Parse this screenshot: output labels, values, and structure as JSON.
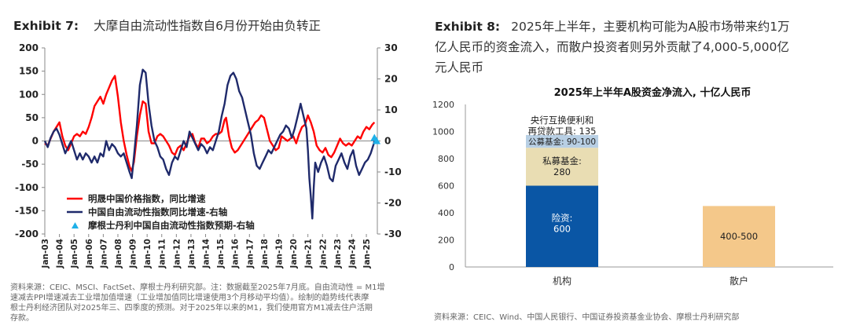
{
  "left": {
    "exhibit_label": "Exhibit 7:",
    "exhibit_title": "大摩自由流动性指数自6月份开始由负转正",
    "source": [
      "资料来源：CEIC、MSCI、FactSet、摩根士丹利研究部。注：数据截至2025年7月底。自由流动性 = M1增",
      "速减去PPI增速减去工业增加值增速（工业增加值同比增速使用3个月移动平均值）。绘制的趋势线代表摩",
      "根士丹利经济团队对2025年三、四季度的预测。对于2025年以来的M1，我们使用官方M1减去住户活期",
      "存款。"
    ]
  },
  "right": {
    "exhibit_label": "Exhibit 8:",
    "exhibit_title_lines": [
      "2025年上半年，主要机构可能为A股市场带来约1万",
      "亿人民币的资金流入，而散户投资者则另外贡献了4,000-5,000亿",
      "元人民币"
    ],
    "source": "资料来源：CEIC、Wind、中国人民银行、中国证券投资基金业协会、摩根士丹利研究部"
  },
  "chart_data": [
    {
      "type": "line",
      "left_axis": {
        "ticks": [
          "200",
          "150",
          "100",
          "50",
          "0",
          "-50",
          "-100",
          "-150",
          "-200"
        ],
        "ylim": [
          -200,
          200
        ]
      },
      "right_axis": {
        "ticks": [
          "30",
          "20",
          "10",
          "0",
          "-10",
          "-20",
          "-30"
        ],
        "ylim": [
          -30,
          30
        ]
      },
      "x_ticks": [
        "Jan-03",
        "Jan-04",
        "Jan-05",
        "Jan-06",
        "Jan-07",
        "Jan-08",
        "Jan-09",
        "Jan-10",
        "Jan-11",
        "Jan-12",
        "Jan-13",
        "Jan-14",
        "Jan-15",
        "Jan-16",
        "Jan-17",
        "Jan-18",
        "Jan-19",
        "Jan-20",
        "Jan-21",
        "Jan-22",
        "Jan-23",
        "Jan-24",
        "Jan-25"
      ],
      "x_range": [
        2003,
        2025.75
      ],
      "legend_position": "bottom-left",
      "series": [
        {
          "name": "明晟中国价格指数，同比增速",
          "axis": "left",
          "color": "#ff0000",
          "points": [
            [
              2003.0,
              -5
            ],
            [
              2003.2,
              -10
            ],
            [
              2003.4,
              5
            ],
            [
              2003.6,
              20
            ],
            [
              2003.8,
              30
            ],
            [
              2004.0,
              40
            ],
            [
              2004.2,
              10
            ],
            [
              2004.4,
              -10
            ],
            [
              2004.6,
              -20
            ],
            [
              2004.8,
              -5
            ],
            [
              2005.0,
              10
            ],
            [
              2005.2,
              15
            ],
            [
              2005.4,
              10
            ],
            [
              2005.6,
              20
            ],
            [
              2005.8,
              15
            ],
            [
              2006.0,
              30
            ],
            [
              2006.2,
              50
            ],
            [
              2006.4,
              75
            ],
            [
              2006.6,
              85
            ],
            [
              2006.8,
              95
            ],
            [
              2007.0,
              80
            ],
            [
              2007.2,
              100
            ],
            [
              2007.4,
              115
            ],
            [
              2007.6,
              130
            ],
            [
              2007.8,
              140
            ],
            [
              2008.0,
              95
            ],
            [
              2008.2,
              40
            ],
            [
              2008.4,
              0
            ],
            [
              2008.6,
              -30
            ],
            [
              2008.8,
              -55
            ],
            [
              2008.95,
              -65
            ],
            [
              2009.1,
              -45
            ],
            [
              2009.3,
              10
            ],
            [
              2009.5,
              55
            ],
            [
              2009.7,
              85
            ],
            [
              2009.9,
              80
            ],
            [
              2010.1,
              20
            ],
            [
              2010.3,
              -5
            ],
            [
              2010.5,
              -5
            ],
            [
              2010.7,
              10
            ],
            [
              2010.9,
              15
            ],
            [
              2011.1,
              10
            ],
            [
              2011.3,
              0
            ],
            [
              2011.5,
              -10
            ],
            [
              2011.7,
              -25
            ],
            [
              2011.9,
              -30
            ],
            [
              2012.1,
              -15
            ],
            [
              2012.3,
              -10
            ],
            [
              2012.5,
              -20
            ],
            [
              2012.7,
              -5
            ],
            [
              2012.9,
              10
            ],
            [
              2013.1,
              15
            ],
            [
              2013.3,
              -5
            ],
            [
              2013.5,
              -15
            ],
            [
              2013.7,
              5
            ],
            [
              2013.9,
              5
            ],
            [
              2014.1,
              -5
            ],
            [
              2014.3,
              0
            ],
            [
              2014.5,
              10
            ],
            [
              2014.7,
              15
            ],
            [
              2014.9,
              15
            ],
            [
              2015.1,
              20
            ],
            [
              2015.3,
              45
            ],
            [
              2015.4,
              50
            ],
            [
              2015.6,
              10
            ],
            [
              2015.8,
              -15
            ],
            [
              2016.0,
              -25
            ],
            [
              2016.2,
              -20
            ],
            [
              2016.4,
              -10
            ],
            [
              2016.6,
              0
            ],
            [
              2016.8,
              10
            ],
            [
              2017.0,
              20
            ],
            [
              2017.2,
              30
            ],
            [
              2017.4,
              40
            ],
            [
              2017.6,
              45
            ],
            [
              2017.8,
              55
            ],
            [
              2018.0,
              50
            ],
            [
              2018.2,
              25
            ],
            [
              2018.4,
              0
            ],
            [
              2018.6,
              -10
            ],
            [
              2018.8,
              -20
            ],
            [
              2019.0,
              -15
            ],
            [
              2019.2,
              10
            ],
            [
              2019.4,
              5
            ],
            [
              2019.6,
              0
            ],
            [
              2019.8,
              5
            ],
            [
              2020.0,
              10
            ],
            [
              2020.2,
              -5
            ],
            [
              2020.4,
              15
            ],
            [
              2020.6,
              30
            ],
            [
              2020.8,
              35
            ],
            [
              2021.0,
              55
            ],
            [
              2021.2,
              40
            ],
            [
              2021.4,
              20
            ],
            [
              2021.6,
              -10
            ],
            [
              2021.8,
              -20
            ],
            [
              2022.0,
              -25
            ],
            [
              2022.2,
              -15
            ],
            [
              2022.4,
              -30
            ],
            [
              2022.6,
              -35
            ],
            [
              2022.8,
              -25
            ],
            [
              2023.0,
              -10
            ],
            [
              2023.2,
              5
            ],
            [
              2023.4,
              -5
            ],
            [
              2023.6,
              -10
            ],
            [
              2023.8,
              -5
            ],
            [
              2024.0,
              -10
            ],
            [
              2024.2,
              0
            ],
            [
              2024.4,
              10
            ],
            [
              2024.6,
              5
            ],
            [
              2024.8,
              20
            ],
            [
              2025.0,
              30
            ],
            [
              2025.2,
              25
            ],
            [
              2025.4,
              35
            ],
            [
              2025.55,
              40
            ]
          ]
        },
        {
          "name": "中国自由流动性指数同比增速-右轴",
          "axis": "right",
          "color": "#1f2a6b",
          "points": [
            [
              2003.0,
              0
            ],
            [
              2003.2,
              -2
            ],
            [
              2003.4,
              1
            ],
            [
              2003.6,
              3
            ],
            [
              2003.8,
              4
            ],
            [
              2004.0,
              2
            ],
            [
              2004.2,
              -1
            ],
            [
              2004.4,
              -4
            ],
            [
              2004.6,
              -2
            ],
            [
              2004.8,
              0
            ],
            [
              2005.0,
              -3
            ],
            [
              2005.2,
              -6
            ],
            [
              2005.4,
              -4
            ],
            [
              2005.6,
              -6
            ],
            [
              2005.8,
              -4
            ],
            [
              2006.0,
              -5
            ],
            [
              2006.2,
              -7
            ],
            [
              2006.4,
              -5
            ],
            [
              2006.6,
              -7
            ],
            [
              2006.8,
              -4
            ],
            [
              2007.0,
              -5
            ],
            [
              2007.2,
              0
            ],
            [
              2007.4,
              -3
            ],
            [
              2007.6,
              -1
            ],
            [
              2007.8,
              -2
            ],
            [
              2008.0,
              -4
            ],
            [
              2008.2,
              -5
            ],
            [
              2008.4,
              -4
            ],
            [
              2008.6,
              -7
            ],
            [
              2008.8,
              -10
            ],
            [
              2008.95,
              -12
            ],
            [
              2009.1,
              -5
            ],
            [
              2009.3,
              5
            ],
            [
              2009.5,
              18
            ],
            [
              2009.7,
              23
            ],
            [
              2009.9,
              22
            ],
            [
              2010.1,
              12
            ],
            [
              2010.3,
              5
            ],
            [
              2010.5,
              0
            ],
            [
              2010.7,
              -2
            ],
            [
              2010.9,
              -5
            ],
            [
              2011.1,
              -6
            ],
            [
              2011.3,
              -9
            ],
            [
              2011.5,
              -11
            ],
            [
              2011.7,
              -7
            ],
            [
              2011.9,
              -5
            ],
            [
              2012.1,
              -6
            ],
            [
              2012.3,
              -3
            ],
            [
              2012.5,
              0
            ],
            [
              2012.7,
              -2
            ],
            [
              2012.9,
              3
            ],
            [
              2013.1,
              1
            ],
            [
              2013.3,
              -1
            ],
            [
              2013.5,
              -3
            ],
            [
              2013.7,
              -1
            ],
            [
              2013.9,
              -2
            ],
            [
              2014.1,
              -4
            ],
            [
              2014.3,
              -2
            ],
            [
              2014.5,
              -3
            ],
            [
              2014.7,
              0
            ],
            [
              2014.9,
              3
            ],
            [
              2015.1,
              8
            ],
            [
              2015.3,
              12
            ],
            [
              2015.5,
              18
            ],
            [
              2015.7,
              21
            ],
            [
              2015.9,
              22
            ],
            [
              2016.1,
              20
            ],
            [
              2016.3,
              16
            ],
            [
              2016.5,
              14
            ],
            [
              2016.7,
              10
            ],
            [
              2016.9,
              6
            ],
            [
              2017.1,
              2
            ],
            [
              2017.3,
              -4
            ],
            [
              2017.5,
              -8
            ],
            [
              2017.7,
              -9
            ],
            [
              2017.9,
              -7
            ],
            [
              2018.1,
              -5
            ],
            [
              2018.3,
              -3
            ],
            [
              2018.5,
              -4
            ],
            [
              2018.7,
              -2
            ],
            [
              2018.9,
              0
            ],
            [
              2019.1,
              2
            ],
            [
              2019.3,
              3
            ],
            [
              2019.5,
              5
            ],
            [
              2019.7,
              4
            ],
            [
              2019.9,
              1
            ],
            [
              2020.1,
              4
            ],
            [
              2020.3,
              8
            ],
            [
              2020.5,
              12
            ],
            [
              2020.7,
              8
            ],
            [
              2020.9,
              4
            ],
            [
              2021.0,
              -3
            ],
            [
              2021.1,
              -12
            ],
            [
              2021.2,
              -18
            ],
            [
              2021.3,
              -25
            ],
            [
              2021.4,
              -15
            ],
            [
              2021.5,
              -7
            ],
            [
              2021.7,
              -10
            ],
            [
              2021.9,
              -7
            ],
            [
              2022.1,
              -5
            ],
            [
              2022.3,
              -8
            ],
            [
              2022.5,
              -12
            ],
            [
              2022.7,
              -13
            ],
            [
              2022.9,
              -8
            ],
            [
              2023.1,
              -6
            ],
            [
              2023.3,
              -4
            ],
            [
              2023.5,
              -7
            ],
            [
              2023.7,
              -9
            ],
            [
              2023.9,
              -5
            ],
            [
              2024.1,
              -3
            ],
            [
              2024.3,
              -8
            ],
            [
              2024.5,
              -11
            ],
            [
              2024.7,
              -9
            ],
            [
              2024.9,
              -7
            ],
            [
              2025.1,
              -6
            ],
            [
              2025.3,
              -4
            ],
            [
              2025.5,
              -1
            ],
            [
              2025.6,
              1
            ]
          ]
        },
        {
          "name": "摩根士丹利中国自由流动性指数预期-右轴",
          "axis": "right",
          "color": "#1fb0e8",
          "marker": "triangle",
          "points": [
            [
              2025.55,
              1
            ],
            [
              2025.7,
              0
            ]
          ]
        }
      ]
    },
    {
      "type": "bar",
      "title": "2025年上半年A股资金净流入, 十亿人民币",
      "ylim": [
        0,
        1200
      ],
      "y_ticks": [
        "1200",
        "1000",
        "800",
        "600",
        "400",
        "200",
        "0"
      ],
      "categories": [
        "机构",
        "散户"
      ],
      "series": [
        {
          "name": "险资",
          "label_lines": [
            "险资:",
            "600"
          ],
          "values": [
            600,
            0
          ],
          "color": "#0a56a5"
        },
        {
          "name": "私募基金",
          "label_lines": [
            "私募基金:",
            "280"
          ],
          "values": [
            280,
            0
          ],
          "color": "#e9ddb3"
        },
        {
          "name": "公募基金",
          "label_lines": [
            "公募基金: 90-100"
          ],
          "values": [
            95,
            0
          ],
          "color": "#b8cfe4"
        },
        {
          "name": "央行互换便利和再贷款工具",
          "label_lines": [
            "央行互换便利和",
            "再贷款工具: 135"
          ],
          "values": [
            135,
            0
          ],
          "color": "#ffffff"
        },
        {
          "name": "散户",
          "label_lines": [
            "400-500"
          ],
          "values": [
            0,
            450
          ],
          "color": "#f4c88a"
        }
      ]
    }
  ]
}
